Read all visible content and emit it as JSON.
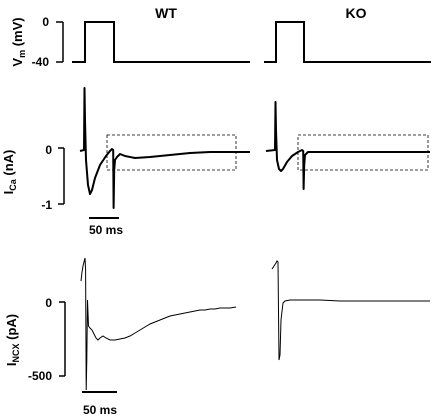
{
  "chart_data": {
    "type": "line",
    "columns": [
      {
        "title": "WT"
      },
      {
        "title": "KO"
      }
    ],
    "rows": [
      {
        "ylabel_main": "V",
        "ylabel_sub": "m",
        "ylabel_unit": " (mV)",
        "ticks": [
          0,
          -40
        ],
        "tick_labels": [
          "0",
          "-40"
        ],
        "protocol": {
          "holding_mV": -40,
          "step_mV": 0,
          "pulse_duration_ms": 50
        }
      },
      {
        "ylabel_main": "I",
        "ylabel_sub": "Ca",
        "ylabel_unit": " (nA)",
        "ticks": [
          0,
          -1
        ],
        "tick_labels": [
          "0",
          "-1"
        ],
        "scalebar": "50 ms"
      },
      {
        "ylabel_main": "I",
        "ylabel_sub": "NCX",
        "ylabel_unit": " (pA)",
        "ticks": [
          0,
          -500
        ],
        "tick_labels": [
          "0",
          "-500"
        ],
        "scalebar": "50 ms"
      }
    ],
    "series": [
      {
        "panel": "ICa-WT",
        "x_ms": [
          0,
          3,
          8,
          15,
          25,
          35,
          45,
          50,
          52,
          55,
          60,
          70,
          90,
          120,
          160,
          200,
          240,
          270
        ],
        "y_nA": [
          0,
          -0.35,
          -0.78,
          -0.65,
          -0.3,
          -0.12,
          -0.06,
          -1.1,
          -0.4,
          -0.12,
          -0.08,
          -0.08,
          -0.06,
          -0.05,
          -0.04,
          -0.03,
          -0.03,
          -0.02
        ]
      },
      {
        "panel": "ICa-KO",
        "x_ms": [
          0,
          3,
          8,
          15,
          25,
          35,
          45,
          50,
          52,
          55,
          60,
          90,
          150,
          210,
          270
        ],
        "y_nA": [
          0,
          -0.2,
          -0.38,
          -0.3,
          -0.17,
          -0.08,
          -0.04,
          -0.7,
          -0.2,
          -0.04,
          -0.03,
          -0.02,
          -0.02,
          -0.02,
          -0.02
        ]
      },
      {
        "panel": "INCX-WT",
        "x_ms": [
          0,
          2,
          5,
          10,
          15,
          25,
          40,
          60,
          80,
          100,
          120,
          140,
          160,
          180,
          200
        ],
        "y_pA": [
          -540,
          -460,
          -100,
          -160,
          -230,
          -265,
          -250,
          -235,
          -210,
          -175,
          -140,
          -110,
          -95,
          -80,
          -70
        ]
      },
      {
        "panel": "INCX-KO",
        "x_ms": [
          0,
          2,
          5,
          10,
          30,
          60,
          100,
          140,
          180,
          200
        ],
        "y_pA": [
          -540,
          -380,
          -10,
          5,
          5,
          5,
          0,
          0,
          -2,
          0
        ]
      }
    ]
  }
}
